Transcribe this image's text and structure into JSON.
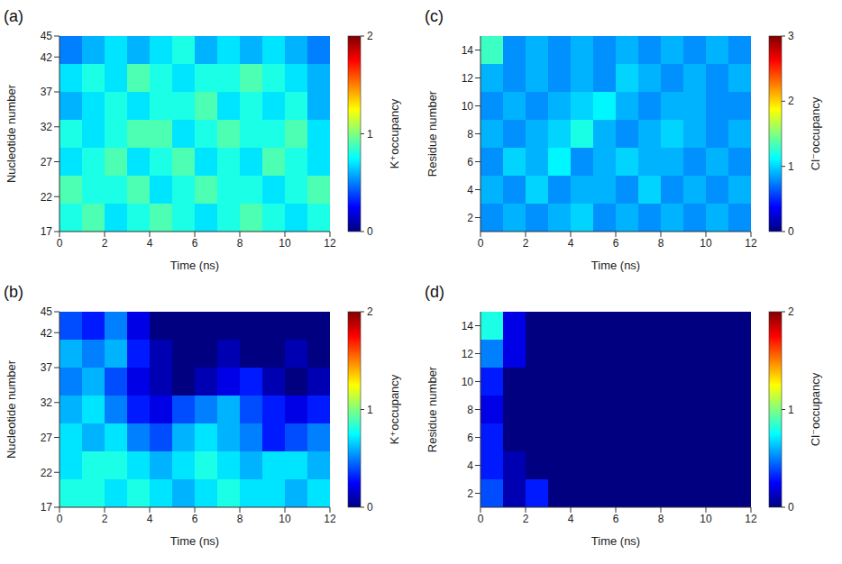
{
  "chart_data": [
    {
      "type": "heatmap",
      "title": "(a)",
      "x_label": "Time (ns)",
      "y_label": "Nucleotide number",
      "colorbar_label": "K⁺occupancy",
      "xlim": [
        0,
        12
      ],
      "xticks": [
        0,
        2,
        4,
        6,
        8,
        10,
        12
      ],
      "ylim": [
        17,
        45
      ],
      "yticks": [
        17,
        22,
        27,
        32,
        37,
        42,
        45
      ],
      "x_bins": [
        0,
        1,
        2,
        3,
        4,
        5,
        6,
        7,
        8,
        9,
        10,
        11,
        12
      ],
      "y_bins": [
        17,
        21,
        25,
        29,
        33,
        37,
        41,
        45
      ],
      "colorbar": {
        "range": [
          0,
          2
        ],
        "ticks": [
          0,
          1,
          2
        ]
      },
      "cells": [
        [
          0.8,
          0.9,
          0.7,
          0.8,
          0.9,
          0.8,
          0.7,
          0.8,
          0.9,
          0.8,
          0.7,
          0.8
        ],
        [
          0.9,
          0.8,
          0.8,
          0.9,
          0.7,
          0.8,
          0.9,
          0.8,
          0.8,
          0.7,
          0.8,
          0.9
        ],
        [
          0.7,
          0.8,
          0.9,
          0.7,
          0.8,
          0.9,
          0.7,
          0.8,
          0.7,
          0.9,
          0.8,
          0.7
        ],
        [
          0.8,
          0.7,
          0.8,
          0.9,
          0.9,
          0.7,
          0.8,
          0.9,
          0.8,
          0.8,
          0.9,
          0.7
        ],
        [
          0.6,
          0.7,
          0.8,
          0.7,
          0.8,
          0.8,
          0.9,
          0.7,
          0.8,
          0.7,
          0.8,
          0.6
        ],
        [
          0.7,
          0.8,
          0.7,
          0.9,
          0.8,
          0.7,
          0.8,
          0.8,
          0.9,
          0.8,
          0.7,
          0.6
        ],
        [
          0.5,
          0.6,
          0.7,
          0.6,
          0.7,
          0.8,
          0.6,
          0.7,
          0.6,
          0.7,
          0.6,
          0.5
        ]
      ]
    },
    {
      "type": "heatmap",
      "title": "(b)",
      "x_label": "Time (ns)",
      "y_label": "Nucleotide number",
      "colorbar_label": "K⁺occupancy",
      "xlim": [
        0,
        12
      ],
      "xticks": [
        0,
        2,
        4,
        6,
        8,
        10,
        12
      ],
      "ylim": [
        17,
        45
      ],
      "yticks": [
        17,
        22,
        27,
        32,
        37,
        42,
        45
      ],
      "x_bins": [
        0,
        1,
        2,
        3,
        4,
        5,
        6,
        7,
        8,
        9,
        10,
        11,
        12
      ],
      "y_bins": [
        17,
        21,
        25,
        29,
        33,
        37,
        41,
        45
      ],
      "colorbar": {
        "range": [
          0,
          2
        ],
        "ticks": [
          0,
          1,
          2
        ]
      },
      "cells": [
        [
          0.8,
          0.8,
          0.7,
          0.8,
          0.7,
          0.6,
          0.7,
          0.8,
          0.7,
          0.7,
          0.6,
          0.7
        ],
        [
          0.7,
          0.8,
          0.8,
          0.7,
          0.6,
          0.7,
          0.8,
          0.7,
          0.6,
          0.7,
          0.7,
          0.6
        ],
        [
          0.7,
          0.6,
          0.7,
          0.5,
          0.4,
          0.6,
          0.7,
          0.6,
          0.5,
          0.3,
          0.4,
          0.5
        ],
        [
          0.6,
          0.7,
          0.5,
          0.3,
          0.2,
          0.4,
          0.5,
          0.6,
          0.4,
          0.3,
          0.2,
          0.3
        ],
        [
          0.5,
          0.6,
          0.4,
          0.2,
          0.1,
          0.0,
          0.1,
          0.2,
          0.3,
          0.1,
          0.0,
          0.1
        ],
        [
          0.6,
          0.5,
          0.6,
          0.3,
          0.1,
          0.0,
          0.0,
          0.1,
          0.0,
          0.0,
          0.1,
          0.0
        ],
        [
          0.4,
          0.3,
          0.5,
          0.2,
          0.0,
          0.0,
          0.0,
          0.0,
          0.0,
          0.0,
          0.0,
          0.0
        ]
      ]
    },
    {
      "type": "heatmap",
      "title": "(c)",
      "x_label": "Time (ns)",
      "y_label": "Residue number",
      "colorbar_label": "Cl⁻occupancy",
      "xlim": [
        0,
        12
      ],
      "xticks": [
        0,
        2,
        4,
        6,
        8,
        10,
        12
      ],
      "ylim": [
        1,
        15
      ],
      "yticks": [
        2,
        4,
        6,
        8,
        10,
        12,
        14
      ],
      "x_bins": [
        0,
        1,
        2,
        3,
        4,
        5,
        6,
        7,
        8,
        9,
        10,
        11,
        12
      ],
      "y_bins": [
        1,
        3,
        5,
        7,
        9,
        11,
        13,
        15
      ],
      "colorbar": {
        "range": [
          0,
          3
        ],
        "ticks": [
          0,
          1,
          2,
          3
        ]
      },
      "cells": [
        [
          0.8,
          0.9,
          0.8,
          0.9,
          1.0,
          0.8,
          0.9,
          0.8,
          0.9,
          0.8,
          0.9,
          0.8
        ],
        [
          0.9,
          0.8,
          1.0,
          0.8,
          0.9,
          0.9,
          0.8,
          1.0,
          0.8,
          0.9,
          0.8,
          0.9
        ],
        [
          0.8,
          1.0,
          0.9,
          1.1,
          0.8,
          0.9,
          1.0,
          0.9,
          0.9,
          0.8,
          0.9,
          0.8
        ],
        [
          0.9,
          0.8,
          0.9,
          1.0,
          1.2,
          0.9,
          0.8,
          0.9,
          1.0,
          0.9,
          0.8,
          0.9
        ],
        [
          0.8,
          0.9,
          0.8,
          0.9,
          1.0,
          1.1,
          0.9,
          0.8,
          0.9,
          0.9,
          0.8,
          0.8
        ],
        [
          0.9,
          0.8,
          0.9,
          0.8,
          0.9,
          0.8,
          1.0,
          0.9,
          0.8,
          0.9,
          0.8,
          0.9
        ],
        [
          1.3,
          0.8,
          0.9,
          0.8,
          0.9,
          0.8,
          0.9,
          0.8,
          0.9,
          0.8,
          0.9,
          0.8
        ]
      ]
    },
    {
      "type": "heatmap",
      "title": "(d)",
      "x_label": "Time (ns)",
      "y_label": "Residue number",
      "colorbar_label": "Cl⁻occupancy",
      "xlim": [
        0,
        12
      ],
      "xticks": [
        0,
        2,
        4,
        6,
        8,
        10,
        12
      ],
      "ylim": [
        1,
        15
      ],
      "yticks": [
        2,
        4,
        6,
        8,
        10,
        12,
        14
      ],
      "x_bins": [
        0,
        1,
        2,
        3,
        4,
        5,
        6,
        7,
        8,
        9,
        10,
        11,
        12
      ],
      "y_bins": [
        1,
        3,
        5,
        7,
        9,
        11,
        13,
        15
      ],
      "colorbar": {
        "range": [
          0,
          2
        ],
        "ticks": [
          0,
          1,
          2
        ]
      },
      "cells": [
        [
          0.4,
          0.1,
          0.3,
          0.0,
          0.0,
          0.0,
          0.0,
          0.0,
          0.0,
          0.0,
          0.0,
          0.0
        ],
        [
          0.3,
          0.1,
          0.0,
          0.0,
          0.0,
          0.0,
          0.0,
          0.0,
          0.0,
          0.0,
          0.0,
          0.0
        ],
        [
          0.3,
          0.0,
          0.0,
          0.0,
          0.0,
          0.0,
          0.0,
          0.0,
          0.0,
          0.0,
          0.0,
          0.0
        ],
        [
          0.2,
          0.0,
          0.0,
          0.0,
          0.0,
          0.0,
          0.0,
          0.0,
          0.0,
          0.0,
          0.0,
          0.0
        ],
        [
          0.3,
          0.0,
          0.0,
          0.0,
          0.0,
          0.0,
          0.0,
          0.0,
          0.0,
          0.0,
          0.0,
          0.0
        ],
        [
          0.5,
          0.2,
          0.0,
          0.0,
          0.0,
          0.0,
          0.0,
          0.0,
          0.0,
          0.0,
          0.0,
          0.0
        ],
        [
          0.8,
          0.2,
          0.0,
          0.0,
          0.0,
          0.0,
          0.0,
          0.0,
          0.0,
          0.0,
          0.0,
          0.0
        ]
      ]
    }
  ]
}
